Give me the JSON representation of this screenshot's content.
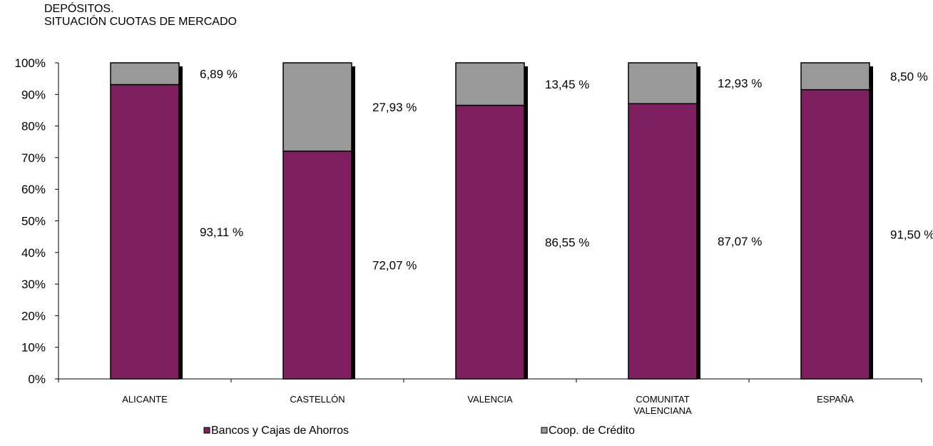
{
  "chart_data": {
    "type": "bar",
    "stacked": true,
    "title_lines": [
      "DEPÓSITOS.",
      "SITUACIÓN CUOTAS DE MERCADO"
    ],
    "categories": [
      [
        "ALICANTE"
      ],
      [
        "CASTELLÓN"
      ],
      [
        "VALENCIA"
      ],
      [
        "COMUNITAT",
        "VALENCIANA"
      ],
      [
        "ESPAÑA"
      ]
    ],
    "series": [
      {
        "name": "Bancos y Cajas de Ahorros",
        "color": "#7f1f5f",
        "values": [
          93.11,
          72.07,
          86.55,
          87.07,
          91.5
        ],
        "labels": [
          "93,11 %",
          "72,07 %",
          "86,55 %",
          "87,07 %",
          "91,50 %"
        ]
      },
      {
        "name": "Coop. de Crédito",
        "color": "#999999",
        "values": [
          6.89,
          27.93,
          13.45,
          12.93,
          8.5
        ],
        "labels": [
          "6,89 %",
          "27,93 %",
          "13,45 %",
          "12,93 %",
          "8,50 %"
        ]
      }
    ],
    "ylim": [
      0,
      100
    ],
    "yticks": [
      "0%",
      "10%",
      "20%",
      "30%",
      "40%",
      "50%",
      "60%",
      "70%",
      "80%",
      "90%",
      "100%"
    ],
    "legend_position": "bottom",
    "grid": false
  }
}
